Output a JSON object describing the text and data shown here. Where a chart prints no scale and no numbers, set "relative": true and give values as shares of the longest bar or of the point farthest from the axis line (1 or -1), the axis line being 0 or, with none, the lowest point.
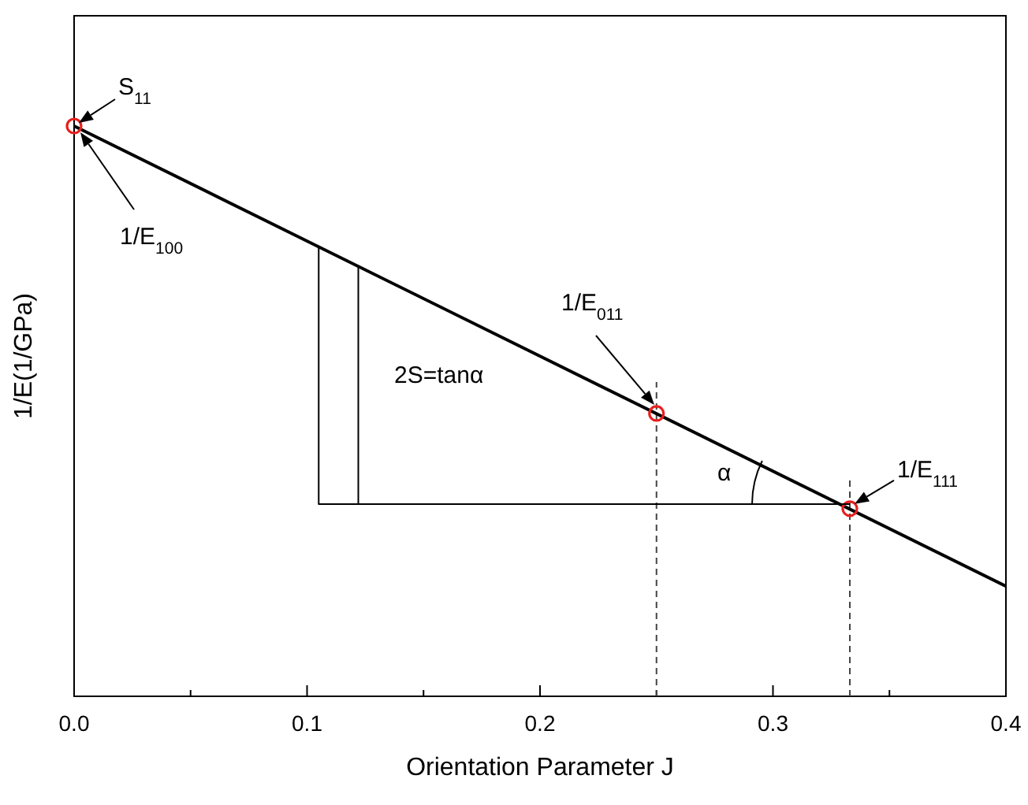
{
  "chart_data": {
    "type": "line",
    "relative": true,
    "xlabel": "Orientation Parameter J",
    "ylabel": "1/E(1/GPa)",
    "xlim": [
      0,
      0.4
    ],
    "xticks": [
      {
        "value": 0,
        "label": "0.0"
      },
      {
        "value": 0.05,
        "label": null
      },
      0.1,
      {
        "value": 0.15,
        "label": null
      },
      0.2,
      {
        "value": 0.25,
        "label": null
      },
      0.3,
      {
        "value": 0.35,
        "label": null
      },
      0.4
    ],
    "tick_labels": "x",
    "grid": false,
    "series": [
      {
        "type": "line",
        "x": [
          0,
          0.4
        ],
        "values": [
          1,
          0.193
        ],
        "color": "#000000",
        "line_style": "solid",
        "marker": "none"
      },
      {
        "type": "scatter",
        "x": [
          0,
          0.25,
          0.333
        ],
        "values": [
          1,
          0.496,
          0.329
        ],
        "color": "#e8201e",
        "marker": "circle"
      },
      {
        "type": "line",
        "x": [
          0.105,
          0.105,
          0.333
        ],
        "values": [
          0.788,
          0.337,
          0.337
        ],
        "color": "#000000",
        "line_style": "solid",
        "marker": "none"
      },
      {
        "type": "line",
        "x": [
          0.122,
          0.122
        ],
        "values": [
          0.754,
          0.337
        ],
        "color": "#000000",
        "line_style": "solid",
        "marker": "none"
      }
    ],
    "ref_lines": [
      {
        "axis": "x",
        "value": 0.25,
        "line_style": "dashed",
        "color": "#444444"
      },
      {
        "axis": "x",
        "value": 0.333,
        "line_style": "dashed",
        "color": "#444444"
      }
    ],
    "annotations": [
      {
        "text": "S$_{11}$",
        "x": 0,
        "y": 1
      },
      "1/E$_{100}$",
      "1/E$_{011}$",
      {
        "text": "1/E$_{111}$",
        "x": 0.333,
        "y": 0.329
      },
      "2S=tanα",
      "α"
    ]
  }
}
